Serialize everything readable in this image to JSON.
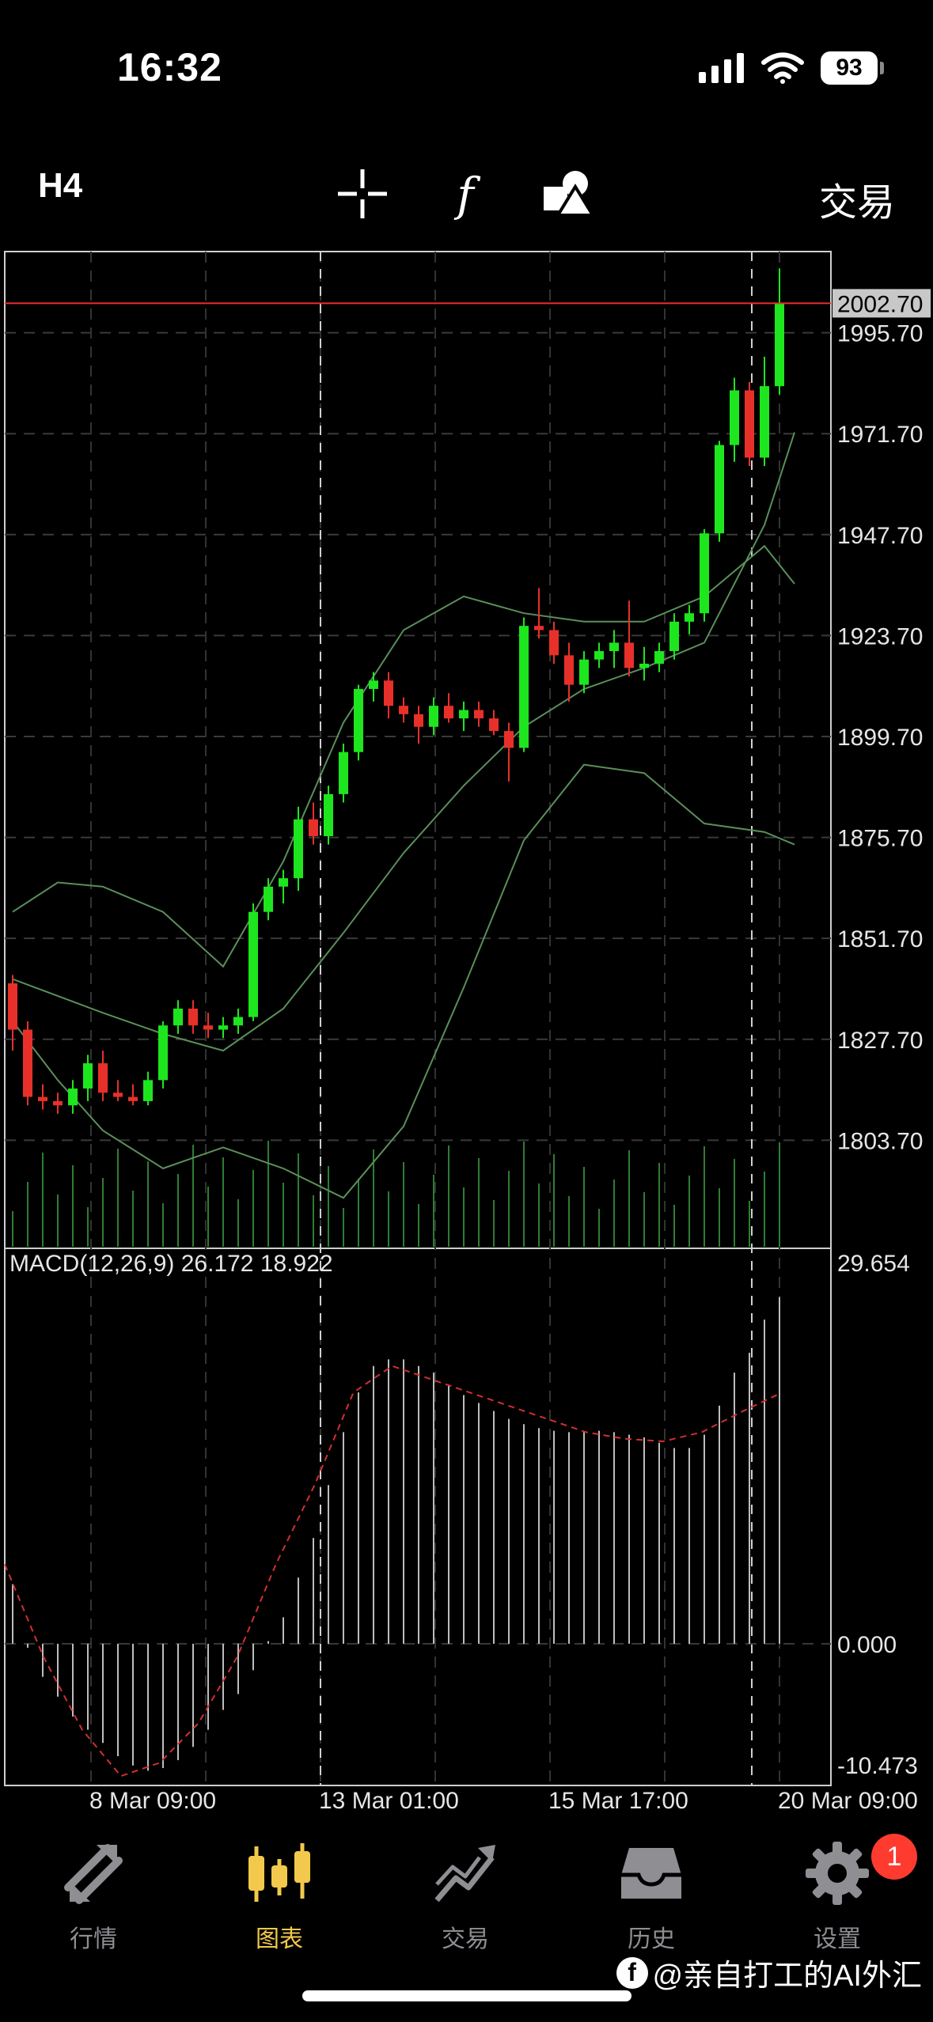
{
  "status": {
    "time": "16:32",
    "battery": "93"
  },
  "toolbar": {
    "timeframe": "H4",
    "trade_label": "交易",
    "icons": [
      "crosshair-icon",
      "function-icon",
      "objects-icon"
    ]
  },
  "chart_data": [
    {
      "type": "candlestick",
      "current_price": "2002.70",
      "y_ticks": [
        "1995.70",
        "1971.70",
        "1947.70",
        "1923.70",
        "1899.70",
        "1875.70",
        "1851.70",
        "1827.70",
        "1803.70"
      ],
      "ylim": [
        1778,
        2015
      ],
      "x_ticks": [
        "8 Mar 09:00",
        "13 Mar 01:00",
        "15 Mar 17:00",
        "20 Mar 09:00"
      ],
      "candles": [
        [
          1841,
          1843,
          1825,
          1830
        ],
        [
          1830,
          1832,
          1812,
          1814
        ],
        [
          1814,
          1817,
          1811,
          1813
        ],
        [
          1813,
          1815,
          1810,
          1812
        ],
        [
          1812,
          1818,
          1810,
          1816
        ],
        [
          1816,
          1824,
          1813,
          1822
        ],
        [
          1822,
          1825,
          1813,
          1815
        ],
        [
          1815,
          1818,
          1813,
          1814
        ],
        [
          1814,
          1817,
          1812,
          1813
        ],
        [
          1813,
          1820,
          1812,
          1818
        ],
        [
          1818,
          1832,
          1816,
          1831
        ],
        [
          1831,
          1837,
          1829,
          1835
        ],
        [
          1835,
          1837,
          1829,
          1831
        ],
        [
          1831,
          1834,
          1828,
          1830
        ],
        [
          1830,
          1833,
          1828,
          1831
        ],
        [
          1831,
          1835,
          1829,
          1833
        ],
        [
          1833,
          1860,
          1832,
          1858
        ],
        [
          1858,
          1866,
          1856,
          1864
        ],
        [
          1864,
          1868,
          1860,
          1866
        ],
        [
          1866,
          1883,
          1863,
          1880
        ],
        [
          1880,
          1884,
          1874,
          1876
        ],
        [
          1876,
          1888,
          1874,
          1886
        ],
        [
          1886,
          1898,
          1884,
          1896
        ],
        [
          1896,
          1912,
          1894,
          1911
        ],
        [
          1911,
          1915,
          1908,
          1913
        ],
        [
          1913,
          1915,
          1904,
          1907
        ],
        [
          1907,
          1909,
          1903,
          1905
        ],
        [
          1905,
          1907,
          1898,
          1902
        ],
        [
          1902,
          1909,
          1900,
          1907
        ],
        [
          1907,
          1910,
          1903,
          1904
        ],
        [
          1904,
          1908,
          1901,
          1906
        ],
        [
          1906,
          1908,
          1902,
          1904
        ],
        [
          1904,
          1906,
          1900,
          1901
        ],
        [
          1901,
          1903,
          1889,
          1897
        ],
        [
          1897,
          1928,
          1896,
          1926
        ],
        [
          1926,
          1935,
          1923,
          1925
        ],
        [
          1925,
          1927,
          1917,
          1919
        ],
        [
          1919,
          1922,
          1908,
          1912
        ],
        [
          1912,
          1920,
          1910,
          1918
        ],
        [
          1918,
          1922,
          1916,
          1920
        ],
        [
          1920,
          1925,
          1916,
          1922
        ],
        [
          1922,
          1932,
          1914,
          1916
        ],
        [
          1916,
          1921,
          1913,
          1917
        ],
        [
          1917,
          1922,
          1915,
          1920
        ],
        [
          1920,
          1929,
          1918,
          1927
        ],
        [
          1927,
          1931,
          1924,
          1929
        ],
        [
          1929,
          1949,
          1927,
          1948
        ],
        [
          1948,
          1970,
          1946,
          1969
        ],
        [
          1969,
          1985,
          1965,
          1982
        ],
        [
          1982,
          1984,
          1964,
          1966
        ],
        [
          1966,
          1990,
          1964,
          1983
        ],
        [
          1983,
          2011,
          1981,
          2002.7
        ]
      ],
      "bollinger": {
        "middle": [
          [
            0,
            1842
          ],
          [
            6,
            1834
          ],
          [
            10,
            1829
          ],
          [
            14,
            1825
          ],
          [
            18,
            1835
          ],
          [
            22,
            1853
          ],
          [
            26,
            1872
          ],
          [
            30,
            1888
          ],
          [
            34,
            1902
          ],
          [
            38,
            1911
          ],
          [
            42,
            1916
          ],
          [
            46,
            1922
          ],
          [
            50,
            1950
          ],
          [
            52,
            1972
          ]
        ],
        "upper": [
          [
            0,
            1858
          ],
          [
            3,
            1865
          ],
          [
            6,
            1864
          ],
          [
            10,
            1858
          ],
          [
            14,
            1845
          ],
          [
            18,
            1870
          ],
          [
            22,
            1903
          ],
          [
            26,
            1925
          ],
          [
            30,
            1933
          ],
          [
            34,
            1929
          ],
          [
            38,
            1927
          ],
          [
            42,
            1927
          ],
          [
            46,
            1933
          ],
          [
            50,
            1945
          ],
          [
            52,
            1936
          ]
        ],
        "lower": [
          [
            0,
            1832
          ],
          [
            3,
            1818
          ],
          [
            6,
            1806
          ],
          [
            10,
            1797
          ],
          [
            14,
            1802
          ],
          [
            18,
            1797
          ],
          [
            22,
            1790
          ],
          [
            26,
            1807
          ],
          [
            30,
            1840
          ],
          [
            34,
            1875
          ],
          [
            38,
            1893
          ],
          [
            42,
            1891
          ],
          [
            46,
            1879
          ],
          [
            50,
            1877
          ],
          [
            52,
            1874
          ]
        ]
      }
    },
    {
      "type": "macd",
      "label": "MACD(12,26,9) 26.172 18.922",
      "y_ticks": [
        "29.654",
        "0.000",
        "-10.473"
      ],
      "ylim": [
        -10.473,
        29.654
      ],
      "histogram": [
        4.5,
        -0.3,
        -2.5,
        -4,
        -5.5,
        -6.5,
        -7.5,
        -8.5,
        -9.2,
        -9.6,
        -9.4,
        -8.8,
        -7.8,
        -6.5,
        -5,
        -3.8,
        -2,
        0.2,
        2,
        5,
        8,
        12,
        16,
        19,
        21,
        21.5,
        21.5,
        21,
        20.5,
        19.6,
        18.8,
        18.2,
        17.6,
        17,
        16.6,
        16.3,
        16.1,
        16,
        16,
        16.1,
        16,
        15.8,
        15.6,
        15.2,
        14.8,
        14.8,
        15.8,
        18,
        20.5,
        22,
        24.5,
        26.2
      ],
      "signal": [
        [
          0,
          6
        ],
        [
          4,
          -1
        ],
        [
          8,
          -6.5
        ],
        [
          12,
          -10
        ],
        [
          16,
          -9
        ],
        [
          20,
          -6
        ],
        [
          24,
          -1
        ],
        [
          28,
          6
        ],
        [
          32,
          12
        ],
        [
          36,
          19
        ],
        [
          40,
          21
        ],
        [
          44,
          20
        ],
        [
          48,
          19
        ],
        [
          52,
          18
        ],
        [
          56,
          17
        ],
        [
          60,
          16
        ],
        [
          64,
          15.5
        ],
        [
          68,
          15.3
        ],
        [
          72,
          16
        ],
        [
          76,
          17.5
        ],
        [
          80,
          18.9
        ]
      ]
    }
  ],
  "tabs": [
    {
      "label": "行情",
      "icon": "quotes-arrows-icon"
    },
    {
      "label": "图表",
      "icon": "candles-icon"
    },
    {
      "label": "交易",
      "icon": "trade-chart-icon"
    },
    {
      "label": "历史",
      "icon": "history-inbox-icon"
    },
    {
      "label": "设置",
      "icon": "settings-gear-icon"
    }
  ],
  "settings_badge": "1",
  "watermark": "@亲自打工的AI外汇"
}
